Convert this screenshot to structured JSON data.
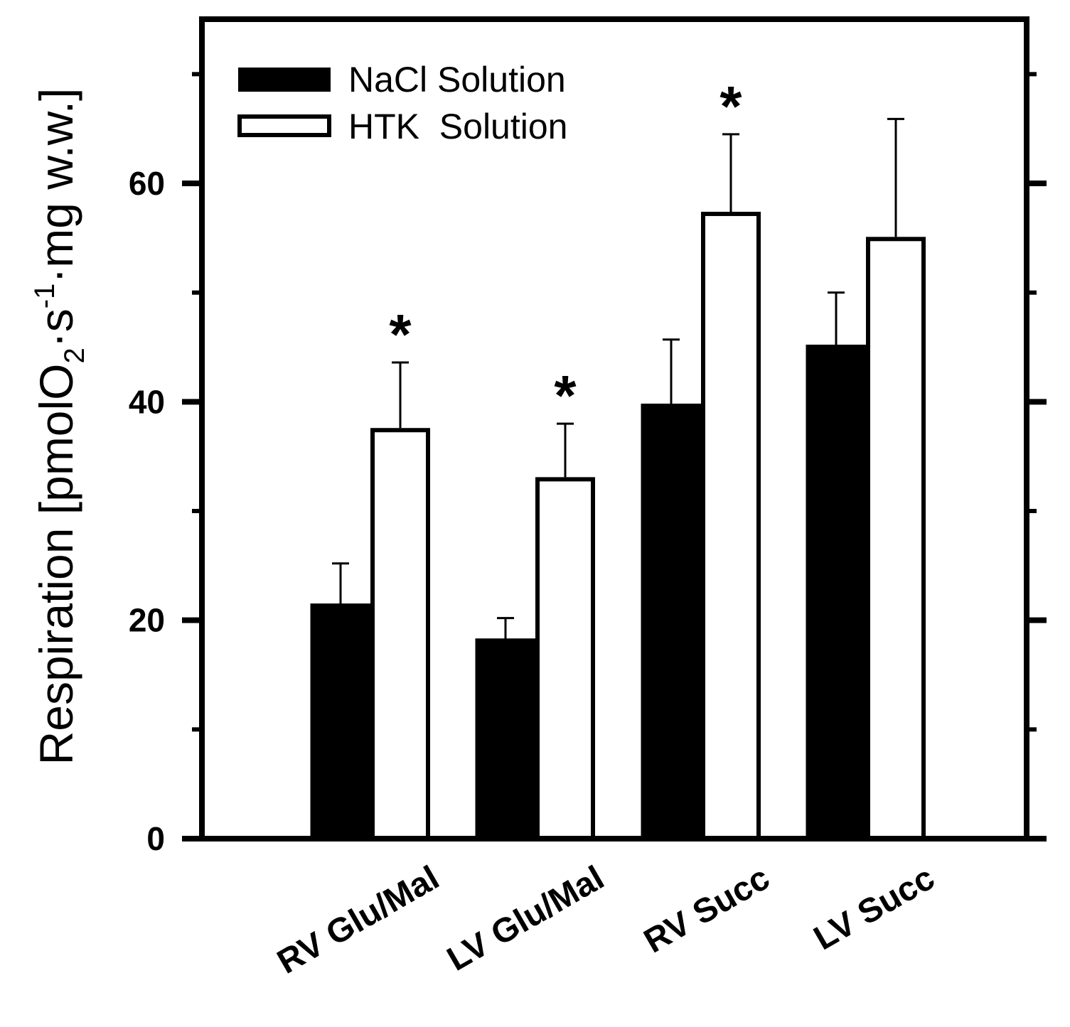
{
  "chart_data": {
    "type": "bar",
    "title": "",
    "xlabel": "",
    "ylabel": {
      "prefix": "Respiration [pmolO",
      "sub": "2",
      "mid1": "·s",
      "sup": "-1",
      "mid2": "·mg w.w.]"
    },
    "ylim": [
      0,
      75
    ],
    "yticks": [
      0,
      20,
      40,
      60
    ],
    "ytick_labels": [
      "0",
      "20",
      "40",
      "60"
    ],
    "minor_ticks": [
      10,
      30,
      50,
      70
    ],
    "categories": [
      "RV Glu/Mal",
      "LV Glu/Mal",
      "RV Succ",
      "LV Succ"
    ],
    "series": [
      {
        "name": "NaCl Solution",
        "fill": "#000000",
        "values": [
          21.5,
          18.3,
          39.8,
          45.2
        ],
        "errors": [
          3.7,
          1.9,
          5.9,
          4.8
        ],
        "significant": [
          false,
          false,
          false,
          false
        ]
      },
      {
        "name": "HTK Solution",
        "fill": "#ffffff",
        "values": [
          37.6,
          33.1,
          57.4,
          55.1
        ],
        "errors": [
          6.0,
          4.9,
          7.1,
          10.8
        ],
        "significant": [
          true,
          true,
          true,
          false
        ]
      }
    ],
    "significance_symbol": "*",
    "legend": {
      "position": "top-left",
      "entries": [
        "NaCl Solution",
        "HTK  Solution"
      ]
    }
  }
}
